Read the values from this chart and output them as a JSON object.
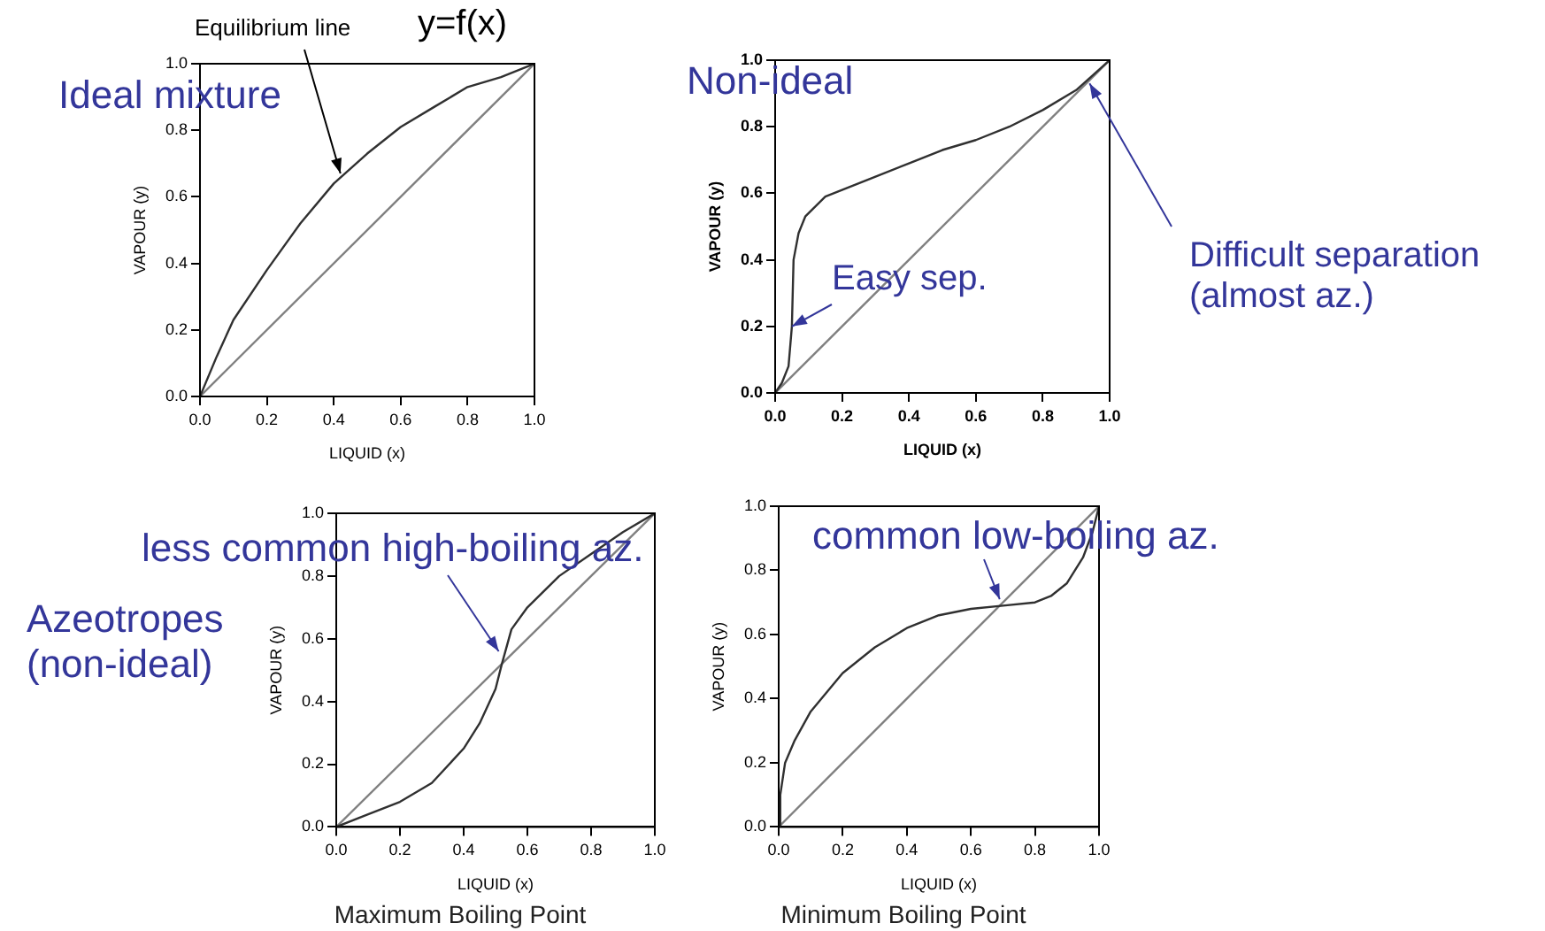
{
  "chart_data": [
    {
      "type": "line",
      "xlabel": "LIQUID (x)",
      "ylabel": "VAPOUR (y)",
      "xlim": [
        0,
        1
      ],
      "ylim": [
        0,
        1
      ],
      "xticks": [
        {
          "value": 0,
          "label": "0.0"
        },
        {
          "value": 0.2,
          "label": "0.2"
        },
        {
          "value": 0.4,
          "label": "0.4"
        },
        {
          "value": 0.6,
          "label": "0.6"
        },
        {
          "value": 0.8,
          "label": "0.8"
        },
        {
          "value": 1,
          "label": "1.0"
        }
      ],
      "yticks": [
        {
          "value": 0,
          "label": "0.0"
        },
        {
          "value": 0.2,
          "label": "0.2"
        },
        {
          "value": 0.4,
          "label": "0.4"
        },
        {
          "value": 0.6,
          "label": "0.6"
        },
        {
          "value": 0.8,
          "label": "0.8"
        },
        {
          "value": 1,
          "label": "1.0"
        }
      ],
      "series": [
        {
          "color": "#303030",
          "x": [
            0,
            0.05,
            0.1,
            0.2,
            0.3,
            0.4,
            0.5,
            0.6,
            0.7,
            0.8,
            0.9,
            1
          ],
          "values": [
            0,
            0.12,
            0.23,
            0.38,
            0.52,
            0.64,
            0.73,
            0.81,
            0.87,
            0.93,
            0.96,
            1
          ]
        },
        {
          "color": "#808080",
          "x": [
            0,
            1
          ],
          "values": [
            0,
            1
          ]
        }
      ],
      "annotations": [
        {
          "text": "Equilibrium line",
          "x": 0.42,
          "y": 0.67
        },
        "y=f(x)",
        "Ideal mixture"
      ]
    },
    {
      "type": "line",
      "xlabel": "LIQUID (x)",
      "ylabel": "VAPOUR (y)",
      "xlim": [
        0,
        1
      ],
      "ylim": [
        0,
        1
      ],
      "xticks": [
        {
          "value": 0,
          "label": "0.0"
        },
        {
          "value": 0.2,
          "label": "0.2"
        },
        {
          "value": 0.4,
          "label": "0.4"
        },
        {
          "value": 0.6,
          "label": "0.6"
        },
        {
          "value": 0.8,
          "label": "0.8"
        },
        {
          "value": 1,
          "label": "1.0"
        }
      ],
      "yticks": [
        {
          "value": 0,
          "label": "0.0"
        },
        {
          "value": 0.2,
          "label": "0.2"
        },
        {
          "value": 0.4,
          "label": "0.4"
        },
        {
          "value": 0.6,
          "label": "0.6"
        },
        {
          "value": 0.8,
          "label": "0.8"
        },
        {
          "value": 1,
          "label": "1.0"
        }
      ],
      "series": [
        {
          "color": "#303030",
          "x": [
            0,
            0.02,
            0.04,
            0.05,
            0.055,
            0.07,
            0.09,
            0.15,
            0.2,
            0.3,
            0.4,
            0.5,
            0.6,
            0.7,
            0.8,
            0.9,
            1
          ],
          "values": [
            0,
            0.03,
            0.08,
            0.2,
            0.4,
            0.48,
            0.53,
            0.59,
            0.61,
            0.65,
            0.69,
            0.73,
            0.76,
            0.8,
            0.85,
            0.91,
            1
          ]
        },
        {
          "color": "#808080",
          "x": [
            0,
            1
          ],
          "values": [
            0,
            1
          ]
        }
      ],
      "annotations": [
        "Non-ideal",
        {
          "text": "Easy sep.",
          "x": 0.05,
          "y": 0.2
        },
        {
          "text": "Difficult separation (almost az.)",
          "x": 0.94,
          "y": 0.93
        }
      ]
    },
    {
      "type": "line",
      "title": "Maximum Boiling Point",
      "xlabel": "LIQUID (x)",
      "ylabel": "VAPOUR (y)",
      "xlim": [
        0,
        1
      ],
      "ylim": [
        0,
        1
      ],
      "xticks": [
        {
          "value": 0,
          "label": "0.0"
        },
        {
          "value": 0.2,
          "label": "0.2"
        },
        {
          "value": 0.4,
          "label": "0.4"
        },
        {
          "value": 0.6,
          "label": "0.6"
        },
        {
          "value": 0.8,
          "label": "0.8"
        },
        {
          "value": 1,
          "label": "1.0"
        }
      ],
      "yticks": [
        {
          "value": 0,
          "label": "0.0"
        },
        {
          "value": 0.2,
          "label": "0.2"
        },
        {
          "value": 0.4,
          "label": "0.4"
        },
        {
          "value": 0.6,
          "label": "0.6"
        },
        {
          "value": 0.8,
          "label": "0.8"
        },
        {
          "value": 1,
          "label": "1.0"
        }
      ],
      "series": [
        {
          "color": "#303030",
          "x": [
            0,
            0.1,
            0.2,
            0.3,
            0.4,
            0.45,
            0.5,
            0.52,
            0.55,
            0.6,
            0.7,
            0.8,
            0.9,
            1
          ],
          "values": [
            0,
            0.04,
            0.08,
            0.14,
            0.25,
            0.33,
            0.44,
            0.52,
            0.63,
            0.7,
            0.8,
            0.87,
            0.94,
            1
          ]
        },
        {
          "color": "#808080",
          "x": [
            0,
            1
          ],
          "values": [
            0,
            1
          ]
        }
      ],
      "annotations": [
        {
          "text": "less common high-boiling az.",
          "x": 0.51,
          "y": 0.56
        },
        "Azeotropes (non-ideal)"
      ]
    },
    {
      "type": "line",
      "title": "Minimum Boiling Point",
      "xlabel": "LIQUID (x)",
      "ylabel": "VAPOUR (y)",
      "xlim": [
        0,
        1
      ],
      "ylim": [
        0,
        1
      ],
      "xticks": [
        {
          "value": 0,
          "label": "0.0"
        },
        {
          "value": 0.2,
          "label": "0.2"
        },
        {
          "value": 0.4,
          "label": "0.4"
        },
        {
          "value": 0.6,
          "label": "0.6"
        },
        {
          "value": 0.8,
          "label": "0.8"
        },
        {
          "value": 1,
          "label": "1.0"
        }
      ],
      "yticks": [
        {
          "value": 0,
          "label": "0.0"
        },
        {
          "value": 0.2,
          "label": "0.2"
        },
        {
          "value": 0.4,
          "label": "0.4"
        },
        {
          "value": 0.6,
          "label": "0.6"
        },
        {
          "value": 0.8,
          "label": "0.8"
        },
        {
          "value": 1,
          "label": "1.0"
        }
      ],
      "series": [
        {
          "color": "#303030",
          "x": [
            0,
            0.005,
            0.02,
            0.05,
            0.1,
            0.2,
            0.3,
            0.4,
            0.5,
            0.6,
            0.7,
            0.8,
            0.85,
            0.9,
            0.95,
            0.98,
            1
          ],
          "values": [
            0,
            0.1,
            0.2,
            0.27,
            0.36,
            0.48,
            0.56,
            0.62,
            0.66,
            0.68,
            0.69,
            0.7,
            0.72,
            0.76,
            0.84,
            0.92,
            1
          ]
        },
        {
          "color": "#808080",
          "x": [
            0,
            1
          ],
          "values": [
            0,
            1
          ]
        }
      ],
      "annotations": [
        {
          "text": "common low-boiling az.",
          "x": 0.69,
          "y": 0.71
        }
      ]
    }
  ]
}
